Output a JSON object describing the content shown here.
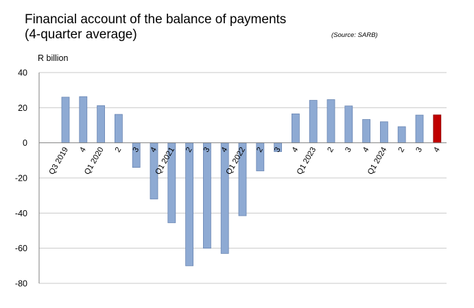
{
  "chart_data": {
    "type": "bar",
    "title_lines": [
      "Financial account of the balance of payments",
      "(4-quarter average)"
    ],
    "source": "(Source: SARB)",
    "unit_label": "R billion",
    "categories": [
      "Q3 2019",
      "4",
      "Q1 2020",
      "2",
      "3",
      "4",
      "Q1 2021",
      "2",
      "3",
      "4",
      "Q1 2022",
      "2",
      "3",
      "4",
      "Q1 2023",
      "2",
      "3",
      "4",
      "Q1 2024",
      "2",
      "3",
      "4"
    ],
    "values": [
      26,
      26.3,
      21.2,
      16.2,
      -14,
      -32,
      -45.5,
      -70,
      -60,
      -63,
      -41.5,
      -16,
      -5,
      16.5,
      24.2,
      24.6,
      21,
      13.3,
      12,
      9.2,
      15.8,
      15.9
    ],
    "ylim": [
      -80,
      40
    ],
    "yticks": [
      40,
      20,
      0,
      -20,
      -40,
      -60,
      -80
    ],
    "grid": true,
    "colors": {
      "bar": "#8eaad3",
      "bar_stroke": "#6a86b3",
      "highlight": "#c00000",
      "highlight_stroke": "#8b0000",
      "grid": "#c8c8c8",
      "axis": "#7f7f7f"
    },
    "highlight_index": 21
  }
}
